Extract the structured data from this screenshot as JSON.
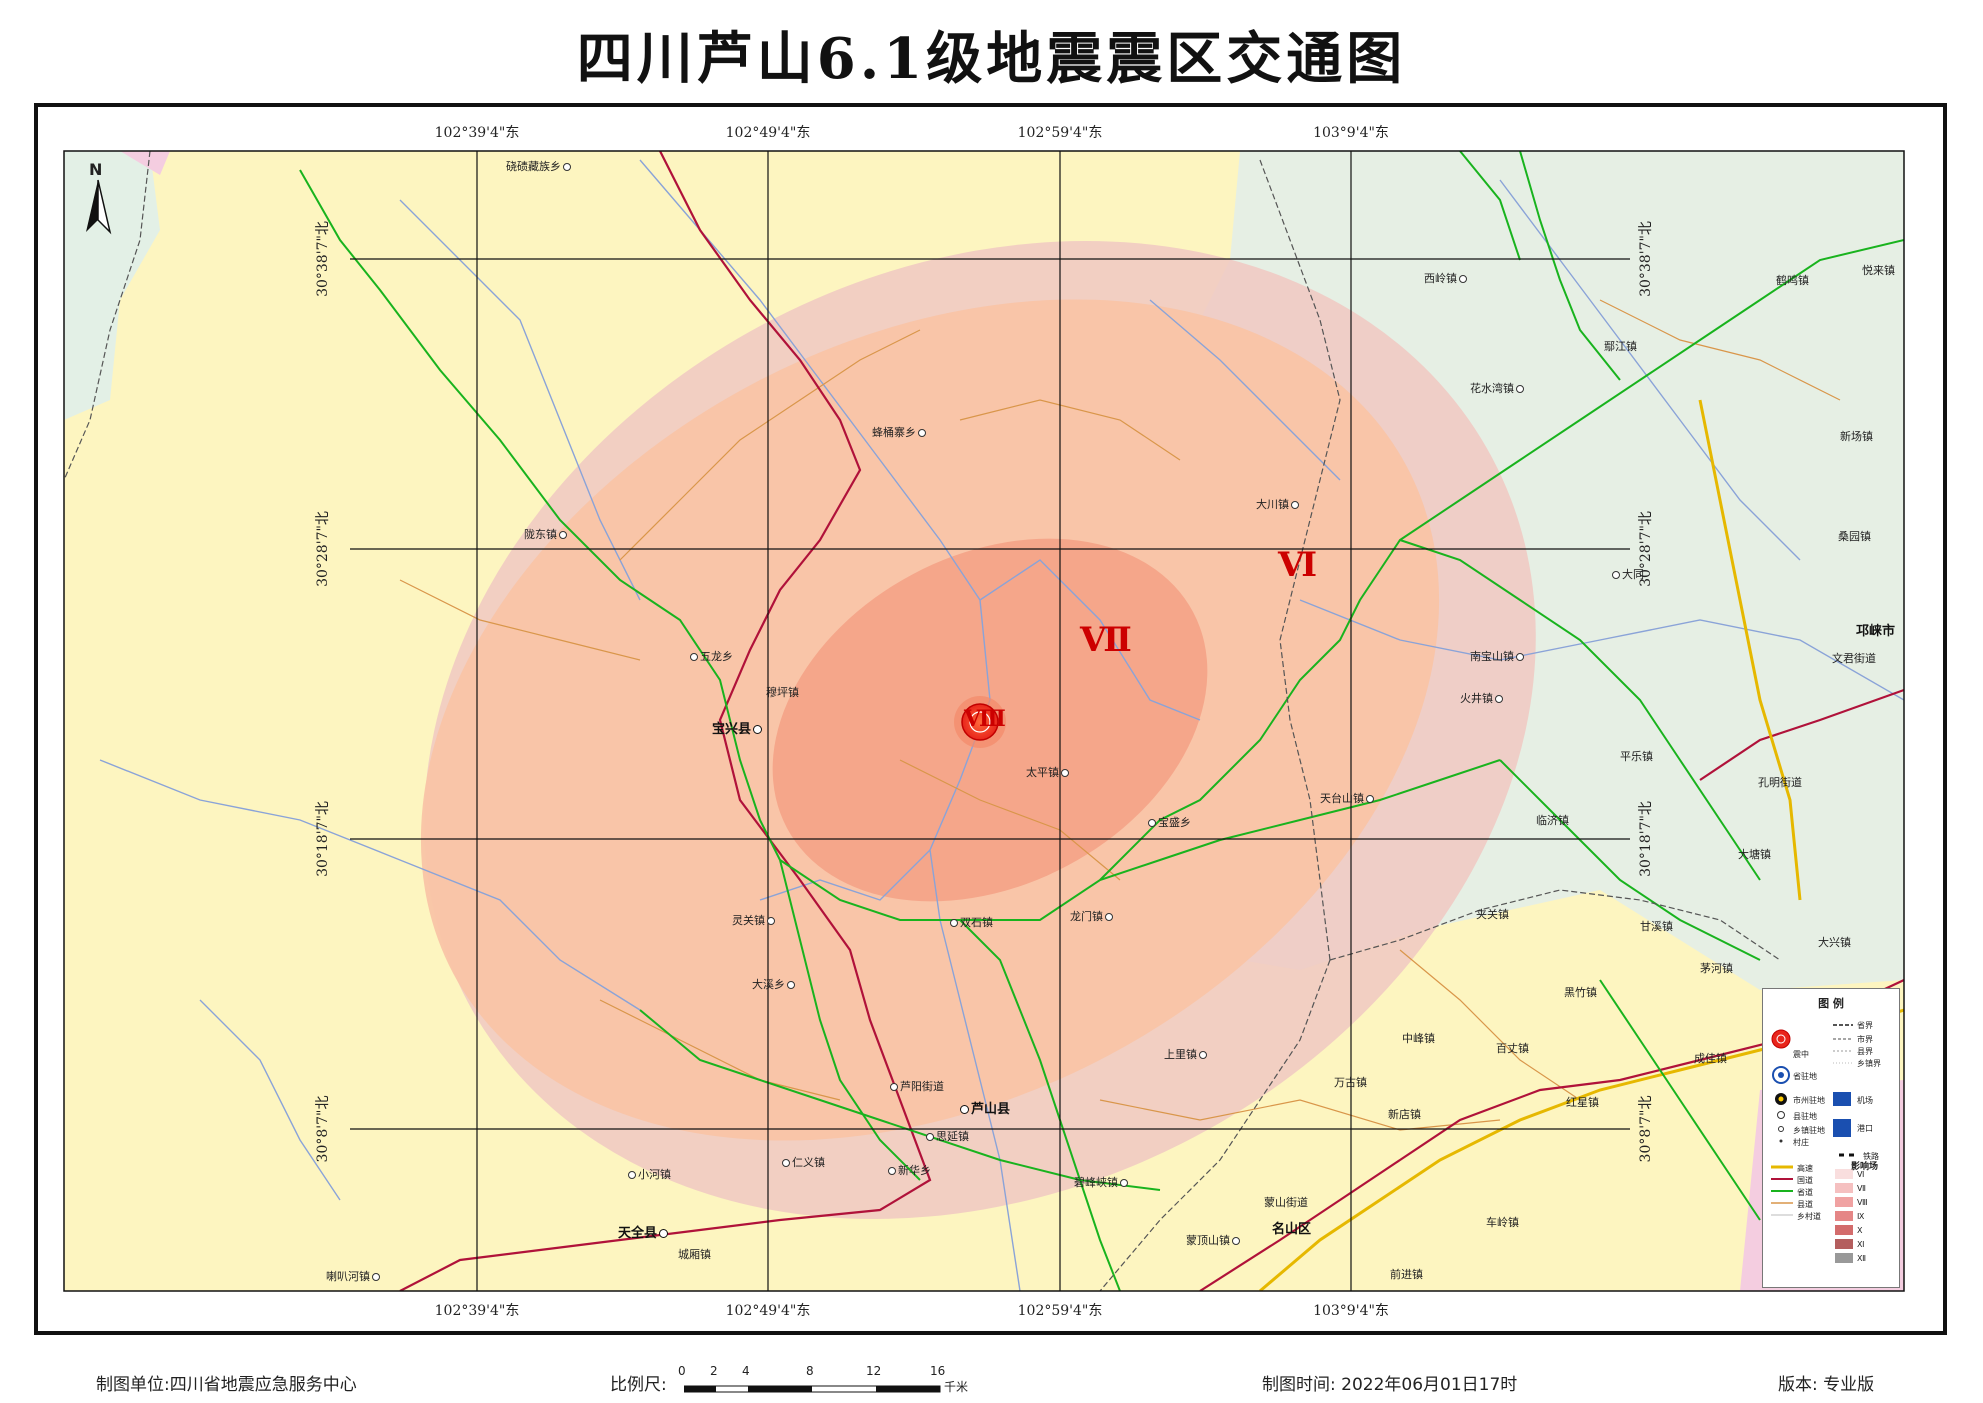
{
  "title": "四川芦山6.1级地震震区交通图",
  "coords": {
    "lon": [
      "102°39'4\"东",
      "102°49'4\"东",
      "102°59'4\"东",
      "103°9'4\"东"
    ],
    "lat": [
      "30°38'7\"北",
      "30°28'7\"北",
      "30°18'7\"北",
      "30°8'7\"北"
    ]
  },
  "north": "N",
  "intensity_labels": [
    "Ⅵ",
    "Ⅶ",
    "Ⅷ"
  ],
  "counties": [
    {
      "name": "宝兴县"
    },
    {
      "name": "芦山县"
    },
    {
      "name": "天全县"
    },
    {
      "name": "名山区"
    },
    {
      "name": "邛崃市"
    }
  ],
  "towns": [
    "硗碛藏族乡",
    "蜂桶寨乡",
    "陇东镇",
    "五龙乡",
    "穆坪镇",
    "太平镇",
    "宝盛乡",
    "大川镇",
    "灵关镇",
    "双石镇",
    "龙门镇",
    "大溪乡",
    "芦阳街道",
    "思延镇",
    "仁义镇",
    "新华乡",
    "小河镇",
    "城厢镇",
    "喇叭河镇",
    "上里镇",
    "碧峰峡镇",
    "蒙山街道",
    "蒙顶山镇",
    "万古镇",
    "中峰镇",
    "百丈镇",
    "红星镇",
    "新店镇",
    "车岭镇",
    "前进镇",
    "西岭镇",
    "鹤鸣镇",
    "悦来镇",
    "花水湾镇",
    "新场镇",
    "桑园镇",
    "大同",
    "南宝山镇",
    "火井镇",
    "文君街道",
    "天台山镇",
    "平乐镇",
    "临济镇",
    "孔明街道",
    "大塘镇",
    "夹关镇",
    "甘溪镇",
    "大兴镇",
    "茅河镇",
    "黑竹镇",
    "成佳镇",
    "鄢江镇"
  ],
  "legend": {
    "title": "图    例",
    "items": [
      "震中",
      "省界",
      "市界",
      "县界",
      "乡镇界",
      "省驻地",
      "市州驻地",
      "机场",
      "县驻地",
      "乡镇驻地",
      "港口",
      "村庄",
      "铁路",
      "高速",
      "国道",
      "省道",
      "县道",
      "乡村道"
    ],
    "intensity_title": "影响场",
    "intensity_levels": [
      "Ⅵ",
      "Ⅶ",
      "Ⅷ",
      "Ⅸ",
      "Ⅹ",
      "Ⅺ",
      "Ⅻ"
    ]
  },
  "footer": {
    "maker": "制图单位:四川省地震应急服务中心",
    "scale_label": "比例尺:",
    "scale_ticks": [
      "0",
      "2",
      "4",
      "8",
      "12",
      "16"
    ],
    "scale_unit": "千米",
    "time": "制图时间: 2022年06月01日17时",
    "version": "版本: 专业版"
  },
  "colors": {
    "zone6": "#f0cfc6",
    "zone7": "#f9c4a6",
    "zone8": "#f5a68a",
    "bg_yellow": "#fdf5c0",
    "bg_green": "#e3f0e6",
    "river": "#8aa3d8",
    "road_green": "#19b31e",
    "road_red": "#b0123a",
    "road_orange": "#d9964a",
    "highway": "#e6b800"
  }
}
